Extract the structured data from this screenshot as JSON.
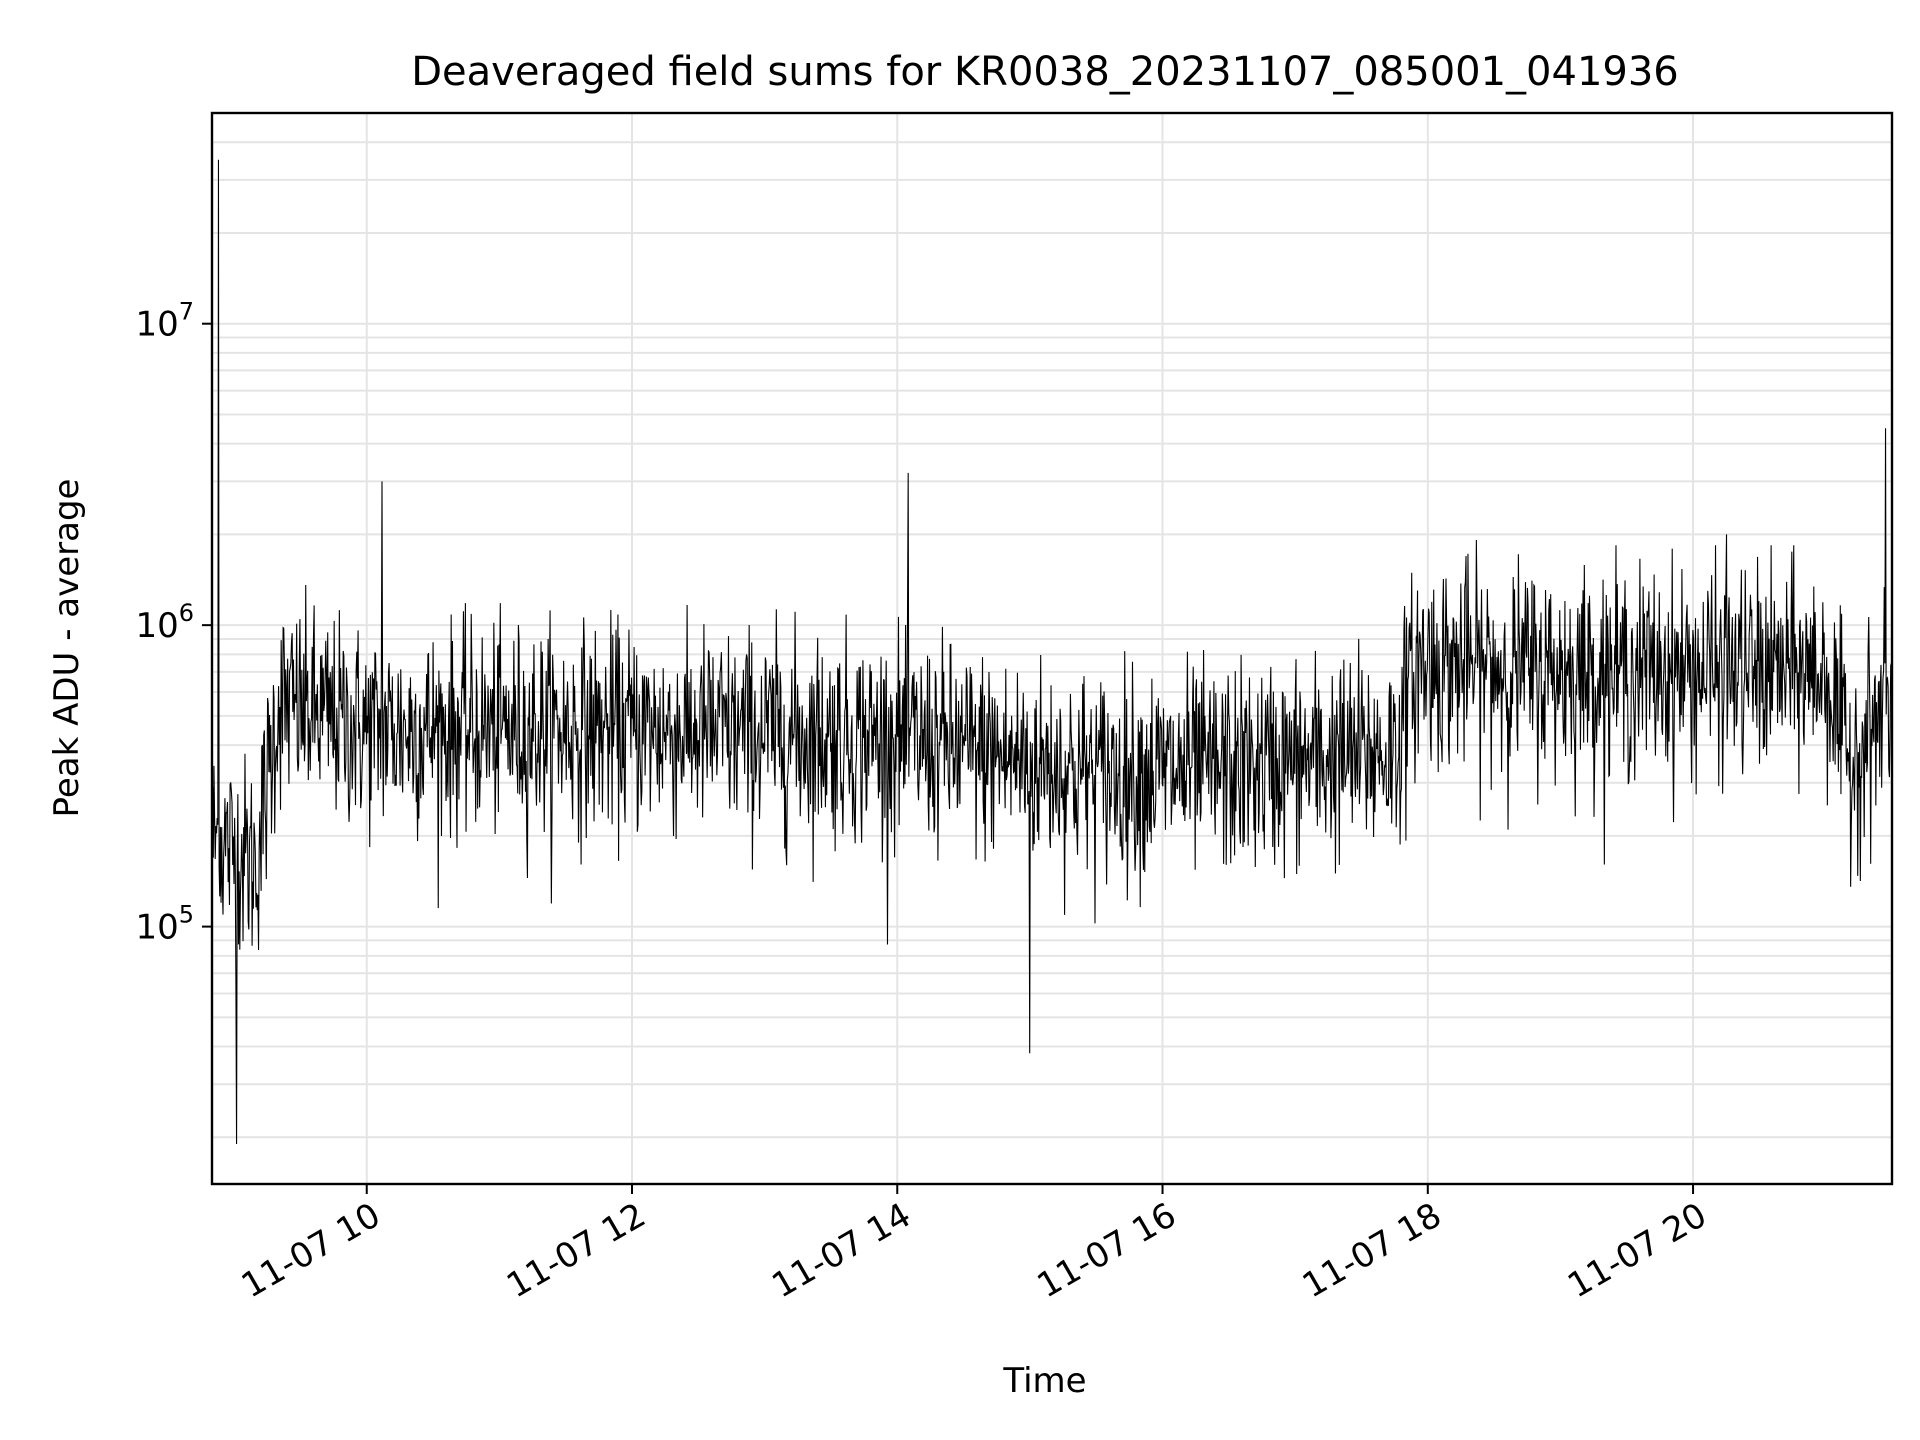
{
  "chart_data": {
    "type": "line",
    "title": "Deaveraged field sums for KR0038_20231107_085001_041936",
    "xlabel": "Time",
    "ylabel": "Peak ADU - average",
    "yscale": "log",
    "ylim": [
      14000,
      50000000
    ],
    "xlim": [
      "2023-11-07 08:50",
      "2023-11-07 21:30"
    ],
    "grid": true,
    "x_ticks": [
      {
        "value": "2023-11-07 10:00",
        "label": "11-07 10"
      },
      {
        "value": "2023-11-07 12:00",
        "label": "11-07 12"
      },
      {
        "value": "2023-11-07 14:00",
        "label": "11-07 14"
      },
      {
        "value": "2023-11-07 16:00",
        "label": "11-07 16"
      },
      {
        "value": "2023-11-07 18:00",
        "label": "11-07 18"
      },
      {
        "value": "2023-11-07 20:00",
        "label": "11-07 20"
      }
    ],
    "y_ticks": [
      {
        "value": 100000,
        "base": "10",
        "exp": "5"
      },
      {
        "value": 1000000,
        "base": "10",
        "exp": "6"
      },
      {
        "value": 10000000,
        "base": "10",
        "exp": "7"
      }
    ],
    "series": [
      {
        "color": "#000000",
        "trend": [
          {
            "x": "2023-11-07 08:50",
            "y": 200000
          },
          {
            "x": "2023-11-07 09:10",
            "y": 160000
          },
          {
            "x": "2023-11-07 09:20",
            "y": 550000
          },
          {
            "x": "2023-11-07 10:00",
            "y": 450000
          },
          {
            "x": "2023-11-07 12:00",
            "y": 450000
          },
          {
            "x": "2023-11-07 14:00",
            "y": 420000
          },
          {
            "x": "2023-11-07 15:30",
            "y": 320000
          },
          {
            "x": "2023-11-07 16:30",
            "y": 330000
          },
          {
            "x": "2023-11-07 17:45",
            "y": 380000
          },
          {
            "x": "2023-11-07 17:55",
            "y": 750000
          },
          {
            "x": "2023-11-07 19:00",
            "y": 700000
          },
          {
            "x": "2023-11-07 20:00",
            "y": 700000
          },
          {
            "x": "2023-11-07 21:00",
            "y": 700000
          },
          {
            "x": "2023-11-07 21:10",
            "y": 350000
          },
          {
            "x": "2023-11-07 21:30",
            "y": 550000
          }
        ],
        "spikes": [
          {
            "x": "2023-11-07 08:53",
            "y": 35000000
          },
          {
            "x": "2023-11-07 09:01",
            "y": 19000
          },
          {
            "x": "2023-11-07 10:07",
            "y": 3000000
          },
          {
            "x": "2023-11-07 14:05",
            "y": 3200000
          },
          {
            "x": "2023-11-07 15:00",
            "y": 38000
          },
          {
            "x": "2023-11-07 20:15",
            "y": 2000000
          },
          {
            "x": "2023-11-07 21:27",
            "y": 4500000
          }
        ]
      }
    ]
  }
}
